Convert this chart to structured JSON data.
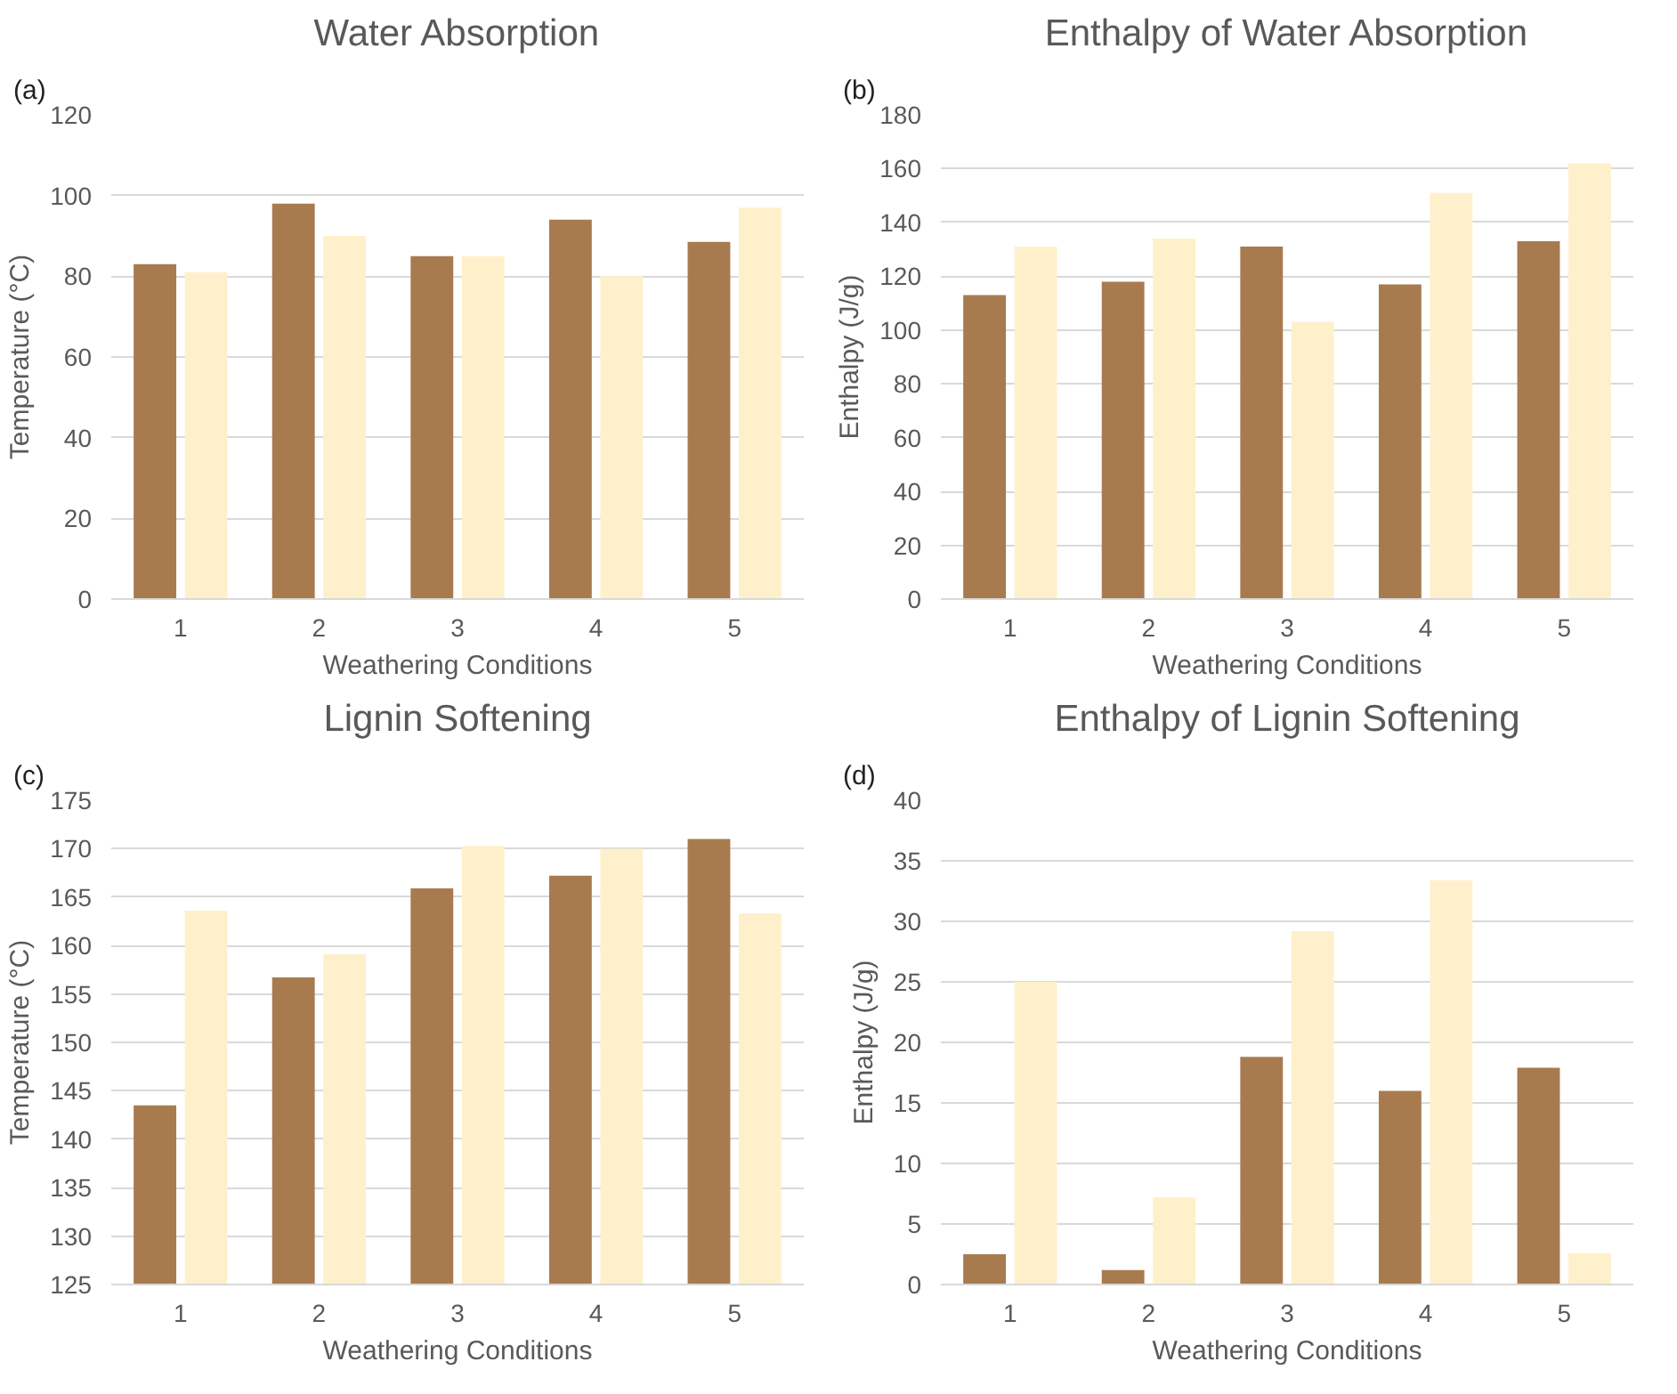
{
  "chart_data": [
    {
      "type": "bar",
      "title": "Water Absorption",
      "annotations": [
        "(a)"
      ],
      "xlabel": "Weathering Conditions",
      "ylabel": "Temperature (°C)",
      "categories": [
        "1",
        "2",
        "3",
        "4",
        "5"
      ],
      "ylim": [
        0,
        120
      ],
      "yticks": [
        0,
        20,
        40,
        60,
        80,
        100,
        120
      ],
      "grid": "y",
      "series": [
        {
          "color": "#a87b4f",
          "values": [
            83,
            98,
            85,
            94,
            88.5
          ]
        },
        {
          "color": "#fff0cc",
          "values": [
            81,
            90,
            85,
            80,
            97
          ]
        }
      ]
    },
    {
      "type": "bar",
      "title": "Enthalpy of Water Absorption",
      "annotations": [
        "(b)"
      ],
      "xlabel": "Weathering Conditions",
      "ylabel": "Enthalpy (J/g)",
      "categories": [
        "1",
        "2",
        "3",
        "4",
        "5"
      ],
      "ylim": [
        0,
        180
      ],
      "yticks": [
        0,
        20,
        40,
        60,
        80,
        100,
        120,
        140,
        160,
        180
      ],
      "grid": "y",
      "series": [
        {
          "color": "#a87b4f",
          "values": [
            113,
            118,
            131,
            117,
            133
          ]
        },
        {
          "color": "#fff0cc",
          "values": [
            131,
            134,
            103,
            151,
            162
          ]
        }
      ]
    },
    {
      "type": "bar",
      "title": "Lignin Softening",
      "annotations": [
        "(c)"
      ],
      "xlabel": "Weathering Conditions",
      "ylabel": "Temperature (°C)",
      "categories": [
        "1",
        "2",
        "3",
        "4",
        "5"
      ],
      "ylim": [
        125,
        175
      ],
      "yticks": [
        125,
        130,
        135,
        140,
        145,
        150,
        155,
        160,
        165,
        170,
        175
      ],
      "grid": "y",
      "series": [
        {
          "color": "#a87b4f",
          "values": [
            143.5,
            156.7,
            165.9,
            167.2,
            171
          ]
        },
        {
          "color": "#fff0cc",
          "values": [
            163.6,
            159.1,
            170.3,
            170,
            163.3
          ]
        }
      ]
    },
    {
      "type": "bar",
      "title": "Enthalpy of Lignin Softening",
      "annotations": [
        "(d)"
      ],
      "xlabel": "Weathering Conditions",
      "ylabel": "Enthalpy (J/g)",
      "categories": [
        "1",
        "2",
        "3",
        "4",
        "5"
      ],
      "ylim": [
        0,
        40
      ],
      "yticks": [
        0,
        5,
        10,
        15,
        20,
        25,
        30,
        35,
        40
      ],
      "grid": "y",
      "series": [
        {
          "color": "#a87b4f",
          "values": [
            2.5,
            1.2,
            18.8,
            16,
            17.9
          ]
        },
        {
          "color": "#fff0cc",
          "values": [
            25,
            7.2,
            29.2,
            33.4,
            2.6
          ]
        }
      ]
    }
  ]
}
